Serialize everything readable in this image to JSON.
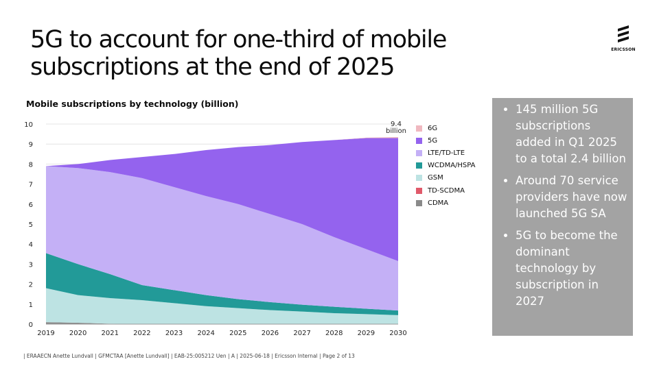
{
  "title": "5G to account for one-third of mobile subscriptions at the end of 2025",
  "logo": {
    "text": "ERICSSON",
    "icon": "ericsson-logo-icon"
  },
  "bullets": [
    "145 million 5G subscriptions added in Q1 2025 to a total 2.4 billion",
    "Around 70 service providers have now launched 5G SA",
    "5G to become the dominant technology by subscription in 2027"
  ],
  "footer": "| ERAAECN Anette Lundvall  |  GFMCTAA [Anette Lundvall]  |  EAB-25:005212 Uen  |  A  |  2025-06-18  |  Ericsson Internal  |  Page 2 of 13",
  "chart_data": {
    "type": "area",
    "stacked": true,
    "title": "Mobile subscriptions by technology (billion)",
    "x": [
      2019,
      2020,
      2021,
      2022,
      2023,
      2024,
      2025,
      2026,
      2027,
      2028,
      2029,
      2030
    ],
    "ylim": [
      0,
      10
    ],
    "yticks": [
      0,
      1,
      2,
      3,
      4,
      5,
      6,
      7,
      8,
      9,
      10
    ],
    "annotation": "9.4 billion",
    "legend_position": "right",
    "series": [
      {
        "name": "CDMA",
        "color": "#8a8a8a",
        "values": [
          0.1,
          0.07,
          0.02,
          0,
          0,
          0,
          0,
          0,
          0,
          0,
          0,
          0
        ]
      },
      {
        "name": "TD-SCDMA",
        "color": "#e0596a",
        "values": [
          0,
          0,
          0,
          0,
          0,
          0,
          0,
          0,
          0,
          0,
          0,
          0
        ]
      },
      {
        "name": "GSM",
        "color": "#bde3e3",
        "values": [
          1.7,
          1.38,
          1.28,
          1.2,
          1.05,
          0.9,
          0.8,
          0.7,
          0.63,
          0.55,
          0.5,
          0.45
        ]
      },
      {
        "name": "WCDMA/HSPA",
        "color": "#229a98",
        "values": [
          1.75,
          1.55,
          1.2,
          0.75,
          0.65,
          0.55,
          0.45,
          0.4,
          0.34,
          0.32,
          0.27,
          0.23
        ]
      },
      {
        "name": "LTE/TD-LTE",
        "color": "#c4b0f6",
        "values": [
          4.35,
          4.8,
          5.1,
          5.35,
          5.15,
          4.95,
          4.75,
          4.4,
          4.03,
          3.48,
          2.98,
          2.47
        ]
      },
      {
        "name": "5G",
        "color": "#9463ee",
        "values": [
          0,
          0.2,
          0.6,
          1.05,
          1.65,
          2.3,
          2.85,
          3.45,
          4.1,
          4.85,
          5.55,
          6.15
        ]
      },
      {
        "name": "6G",
        "color": "#f0b8c0",
        "values": [
          0,
          0,
          0,
          0,
          0,
          0,
          0,
          0,
          0,
          0,
          0.02,
          0.05
        ]
      }
    ]
  }
}
